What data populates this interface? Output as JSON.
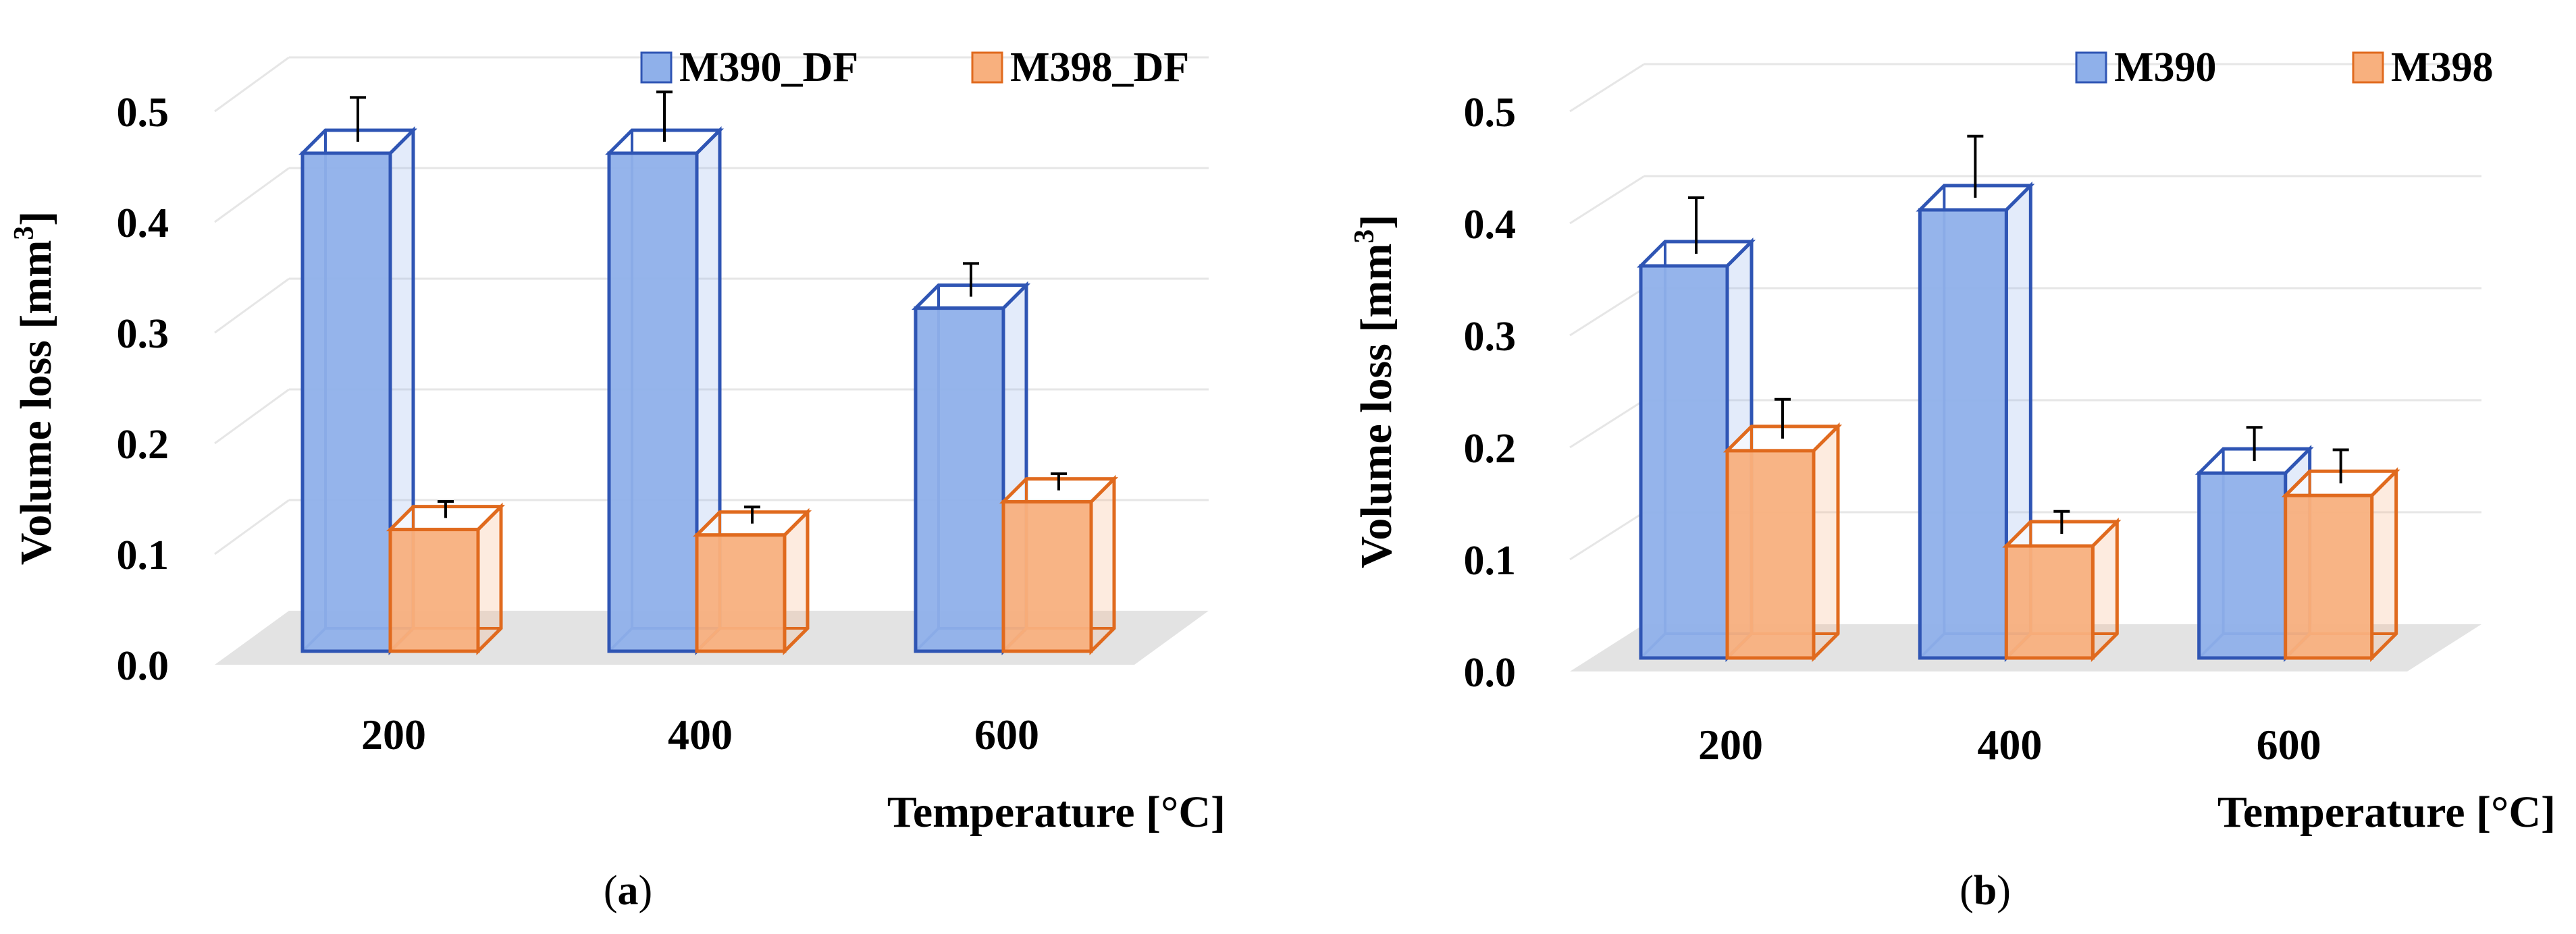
{
  "colors": {
    "series1_fill": "#8FB0EA",
    "series1_stroke": "#2F55B4",
    "series2_fill": "#F8B07E",
    "series2_stroke": "#E06A1E",
    "floor": "#E3E3E3",
    "grid": "#E6E6E6"
  },
  "chart_data": [
    {
      "panel_label": "(a)",
      "type": "bar",
      "categories": [
        "200",
        "400",
        "600"
      ],
      "series": [
        {
          "name": "M390_DF",
          "values": [
            0.45,
            0.45,
            0.31
          ],
          "errors": [
            0.04,
            0.045,
            0.03
          ]
        },
        {
          "name": "M398_DF",
          "values": [
            0.11,
            0.105,
            0.135
          ],
          "errors": [
            0.015,
            0.015,
            0.015
          ]
        }
      ],
      "xlabel": "Temperature [°C]",
      "ylabel_text": "Volume loss [mm",
      "ylabel_sup": "3",
      "ylabel_end": "]",
      "ylim": [
        0,
        0.5
      ],
      "yticks": [
        "0.0",
        "0.1",
        "0.2",
        "0.3",
        "0.4",
        "0.5"
      ],
      "legend": "top-right",
      "grid": true
    },
    {
      "panel_label": "(b)",
      "type": "bar",
      "categories": [
        "200",
        "400",
        "600"
      ],
      "series": [
        {
          "name": "M390",
          "values": [
            0.35,
            0.4,
            0.165
          ],
          "errors": [
            0.05,
            0.055,
            0.03
          ]
        },
        {
          "name": "M398",
          "values": [
            0.185,
            0.1,
            0.145
          ],
          "errors": [
            0.035,
            0.02,
            0.03
          ]
        }
      ],
      "xlabel": "Temperature [°C]",
      "ylabel_text": "Volume loss [mm",
      "ylabel_sup": "3",
      "ylabel_end": "]",
      "ylim": [
        0,
        0.5
      ],
      "yticks": [
        "0.0",
        "0.1",
        "0.2",
        "0.3",
        "0.4",
        "0.5"
      ],
      "legend": "top-right",
      "grid": true
    }
  ]
}
